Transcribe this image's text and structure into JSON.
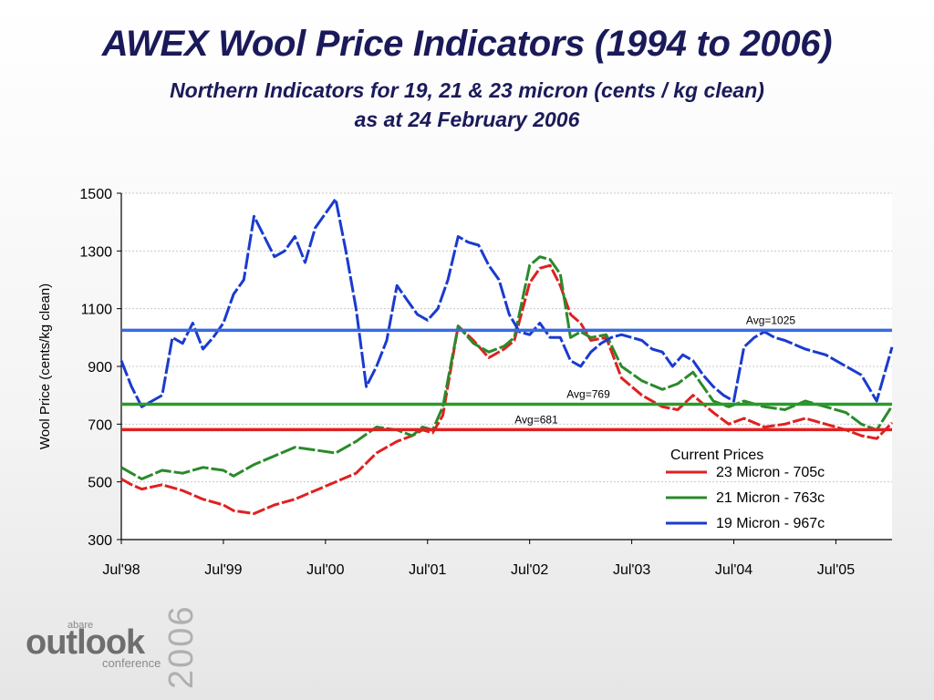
{
  "slide": {
    "title": "AWEX Wool Price Indicators (1994 to 2006)",
    "subtitle_line1": "Northern Indicators for 19, 21 & 23 micron (cents / kg clean)",
    "subtitle_line2": "as at 24 February 2006"
  },
  "logo": {
    "abare": "abare",
    "outlook": "outlook",
    "conference": "conference",
    "year": "2006"
  },
  "chart_data": {
    "type": "line",
    "ylabel": "Wool Price (cents/kg clean)",
    "xlabel": "",
    "ylim": [
      300,
      1500
    ],
    "yticks": [
      "300",
      "500",
      "700",
      "900",
      "1100",
      "1300",
      "1500"
    ],
    "xticks": [
      "Jul'98",
      "Jul'99",
      "Jul'00",
      "Jul'01",
      "Jul'02",
      "Jul'03",
      "Jul'04",
      "Jul'05"
    ],
    "xlim": [
      1998.5,
      2006.05
    ],
    "grid": "horizontal",
    "legend_title": "Current Prices",
    "legend_placement": "bottom-right",
    "series": [
      {
        "name": "23 Micron - 705c",
        "color": "#e02020",
        "x": [
          1998.5,
          1998.6,
          1998.7,
          1998.9,
          1999.1,
          1999.3,
          1999.5,
          1999.6,
          1999.8,
          2000.0,
          2000.2,
          2000.4,
          2000.6,
          2000.8,
          2001.0,
          2001.2,
          2001.35,
          2001.45,
          2001.55,
          2001.65,
          2001.8,
          2001.95,
          2002.1,
          2002.25,
          2002.35,
          2002.5,
          2002.6,
          2002.7,
          2002.8,
          2002.9,
          2003.0,
          2003.1,
          2003.25,
          2003.4,
          2003.6,
          2003.8,
          2003.95,
          2004.1,
          2004.3,
          2004.45,
          2004.6,
          2004.8,
          2005.0,
          2005.2,
          2005.4,
          2005.6,
          2005.75,
          2005.9,
          2006.05
        ],
        "values": [
          510,
          490,
          475,
          490,
          470,
          440,
          420,
          400,
          390,
          420,
          440,
          470,
          500,
          530,
          600,
          640,
          660,
          680,
          670,
          730,
          1040,
          990,
          930,
          960,
          990,
          1190,
          1240,
          1250,
          1180,
          1080,
          1050,
          990,
          1000,
          860,
          800,
          760,
          750,
          800,
          740,
          700,
          720,
          690,
          700,
          720,
          700,
          680,
          660,
          650,
          705
        ]
      },
      {
        "name": "21 Micron - 763c",
        "color": "#2a8a2a",
        "x": [
          1998.5,
          1998.6,
          1998.7,
          1998.9,
          1999.1,
          1999.3,
          1999.5,
          1999.6,
          1999.8,
          2000.0,
          2000.2,
          2000.4,
          2000.6,
          2000.8,
          2001.0,
          2001.2,
          2001.35,
          2001.45,
          2001.55,
          2001.65,
          2001.8,
          2001.95,
          2002.1,
          2002.25,
          2002.35,
          2002.5,
          2002.6,
          2002.7,
          2002.8,
          2002.9,
          2003.0,
          2003.1,
          2003.25,
          2003.4,
          2003.6,
          2003.8,
          2003.95,
          2004.1,
          2004.3,
          2004.45,
          2004.6,
          2004.8,
          2005.0,
          2005.2,
          2005.4,
          2005.6,
          2005.75,
          2005.9,
          2006.05
        ],
        "values": [
          550,
          530,
          510,
          540,
          530,
          550,
          540,
          520,
          560,
          590,
          620,
          610,
          600,
          640,
          690,
          680,
          660,
          690,
          680,
          760,
          1040,
          980,
          950,
          970,
          1000,
          1250,
          1280,
          1270,
          1220,
          1000,
          1020,
          1000,
          1010,
          900,
          850,
          820,
          840,
          880,
          780,
          760,
          780,
          760,
          750,
          780,
          760,
          740,
          700,
          680,
          763
        ]
      },
      {
        "name": "19 Micron - 967c",
        "color": "#1a3ad0",
        "x": [
          1998.5,
          1998.6,
          1998.7,
          1998.8,
          1998.9,
          1999.0,
          1999.1,
          1999.2,
          1999.3,
          1999.4,
          1999.5,
          1999.6,
          1999.7,
          1999.8,
          2000.0,
          2000.1,
          2000.2,
          2000.3,
          2000.4,
          2000.5,
          2000.6,
          2000.7,
          2000.8,
          2000.9,
          2001.0,
          2001.1,
          2001.2,
          2001.3,
          2001.4,
          2001.5,
          2001.6,
          2001.7,
          2001.8,
          2001.9,
          2002.0,
          2002.1,
          2002.2,
          2002.3,
          2002.4,
          2002.5,
          2002.6,
          2002.7,
          2002.8,
          2002.9,
          2003.0,
          2003.1,
          2003.2,
          2003.3,
          2003.4,
          2003.5,
          2003.6,
          2003.7,
          2003.8,
          2003.9,
          2004.0,
          2004.1,
          2004.2,
          2004.3,
          2004.4,
          2004.5,
          2004.6,
          2004.7,
          2004.8,
          2004.9,
          2005.0,
          2005.2,
          2005.4,
          2005.6,
          2005.75,
          2005.9,
          2006.05
        ],
        "values": [
          920,
          830,
          760,
          780,
          800,
          1000,
          980,
          1050,
          960,
          1000,
          1050,
          1150,
          1200,
          1420,
          1280,
          1300,
          1350,
          1260,
          1380,
          1430,
          1480,
          1300,
          1100,
          830,
          900,
          990,
          1180,
          1130,
          1080,
          1060,
          1100,
          1200,
          1350,
          1330,
          1320,
          1250,
          1200,
          1080,
          1020,
          1010,
          1050,
          1000,
          1000,
          920,
          900,
          950,
          980,
          1000,
          1010,
          1000,
          990,
          960,
          950,
          900,
          940,
          920,
          870,
          830,
          800,
          780,
          967,
          1000,
          1020,
          1000,
          990,
          960,
          940,
          900,
          870,
          780,
          967
        ]
      }
    ],
    "reference_lines": [
      {
        "label": "Avg=1025",
        "value": 1025,
        "color": "#3a6ae0"
      },
      {
        "label": "Avg=769",
        "value": 769,
        "color": "#2a9a2a"
      },
      {
        "label": "Avg=681",
        "value": 681,
        "color": "#e02020"
      }
    ]
  }
}
